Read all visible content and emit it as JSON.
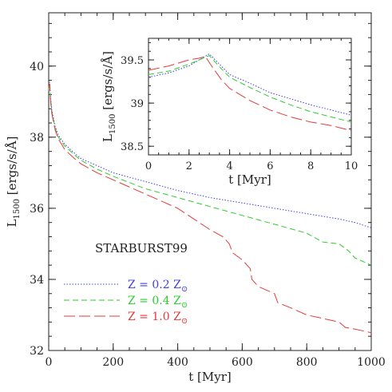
{
  "chart_data": [
    {
      "type": "line",
      "annotation": "STARBURST99",
      "xlabel": "t [Myr]",
      "ylabel_main": "L",
      "ylabel_sub": "1500",
      "ylabel_rest": " [ergs/s/Å]",
      "xlim": [
        0,
        1000
      ],
      "ylim": [
        32,
        41.5
      ],
      "xticks": [
        0,
        200,
        400,
        600,
        800,
        1000
      ],
      "yticks": [
        32,
        34,
        36,
        38,
        40
      ],
      "legend_position": "lower-left",
      "legend": [
        {
          "label": "Z = 0.2 Z",
          "sub": "⊙",
          "color": "#3f3fe6",
          "dash": "1.5 2"
        },
        {
          "label": "Z = 0.4 Z",
          "sub": "⊙",
          "color": "#2ecc2e",
          "dash": "7 4"
        },
        {
          "label": "Z = 1.0 Z",
          "sub": "⊙",
          "color": "#e53b3b",
          "dash": "14 5"
        }
      ],
      "series": [
        {
          "name": "Z = 0.2 Z⊙",
          "color": "#3f3fe6",
          "x": [
            0,
            3,
            6,
            10,
            20,
            30,
            50,
            80,
            100,
            150,
            200,
            300,
            400,
            500,
            600,
            700,
            800,
            900,
            950,
            1000
          ],
          "y": [
            39.3,
            39.55,
            39.1,
            38.75,
            38.3,
            38.05,
            37.8,
            37.55,
            37.4,
            37.2,
            37.0,
            36.75,
            36.5,
            36.3,
            36.15,
            36.0,
            35.85,
            35.7,
            35.6,
            35.45
          ]
        },
        {
          "name": "Z = 0.4 Z⊙",
          "color": "#2ecc2e",
          "x": [
            0,
            3,
            6,
            10,
            20,
            30,
            50,
            80,
            100,
            150,
            200,
            300,
            400,
            500,
            600,
            700,
            800,
            850,
            900,
            930,
            950,
            1000
          ],
          "y": [
            39.35,
            39.55,
            39.05,
            38.7,
            38.25,
            38.0,
            37.75,
            37.5,
            37.35,
            37.1,
            36.9,
            36.55,
            36.3,
            36.05,
            35.8,
            35.55,
            35.3,
            35.05,
            35.0,
            34.8,
            34.6,
            34.4
          ]
        },
        {
          "name": "Z = 1.0 Z⊙",
          "color": "#e53b3b",
          "x": [
            0,
            3,
            6,
            10,
            20,
            30,
            50,
            80,
            100,
            150,
            200,
            300,
            400,
            450,
            500,
            540,
            560,
            570,
            600,
            625,
            630,
            650,
            700,
            710,
            750,
            800,
            850,
            900,
            920,
            950,
            1000
          ],
          "y": [
            39.4,
            39.5,
            39.0,
            38.65,
            38.2,
            37.95,
            37.65,
            37.4,
            37.25,
            37.0,
            36.8,
            36.4,
            36.0,
            35.7,
            35.4,
            35.2,
            35.0,
            34.75,
            34.55,
            34.3,
            34.0,
            33.8,
            33.6,
            33.35,
            33.2,
            33.0,
            32.9,
            32.8,
            32.65,
            32.6,
            32.5
          ]
        }
      ]
    },
    {
      "type": "line",
      "xlabel": "t [Myr]",
      "ylabel_main": "L",
      "ylabel_sub": "1500",
      "ylabel_rest": " [ergs/s/Å]",
      "xlim": [
        0,
        10
      ],
      "ylim": [
        38.4,
        39.75
      ],
      "xticks": [
        0,
        2,
        4,
        6,
        8,
        10
      ],
      "yticks": [
        38.5,
        39,
        39.5
      ],
      "ytick_labels": [
        "38.5",
        "39",
        "39.5"
      ],
      "series": [
        {
          "name": "Z = 0.2 Z⊙",
          "color": "#3f3fe6",
          "x": [
            0,
            1,
            2,
            2.5,
            3,
            3.5,
            4,
            5,
            6,
            7,
            8,
            9,
            10
          ],
          "y": [
            39.3,
            39.35,
            39.43,
            39.5,
            39.57,
            39.45,
            39.33,
            39.23,
            39.12,
            39.05,
            38.98,
            38.92,
            38.86
          ]
        },
        {
          "name": "Z = 0.4 Z⊙",
          "color": "#2ecc2e",
          "x": [
            0,
            1,
            2,
            2.5,
            3,
            3.5,
            4,
            5,
            6,
            7,
            8,
            9,
            10
          ],
          "y": [
            39.33,
            39.37,
            39.45,
            39.5,
            39.55,
            39.42,
            39.3,
            39.18,
            39.07,
            38.98,
            38.9,
            38.84,
            38.78
          ]
        },
        {
          "name": "Z = 1.0 Z⊙",
          "color": "#e53b3b",
          "x": [
            0,
            1,
            2,
            2.5,
            2.8,
            3.2,
            3.6,
            4,
            5,
            6,
            7,
            8,
            9,
            10
          ],
          "y": [
            39.38,
            39.43,
            39.5,
            39.52,
            39.54,
            39.4,
            39.27,
            39.17,
            39.03,
            38.92,
            38.84,
            38.78,
            38.74,
            38.68
          ]
        }
      ]
    }
  ]
}
